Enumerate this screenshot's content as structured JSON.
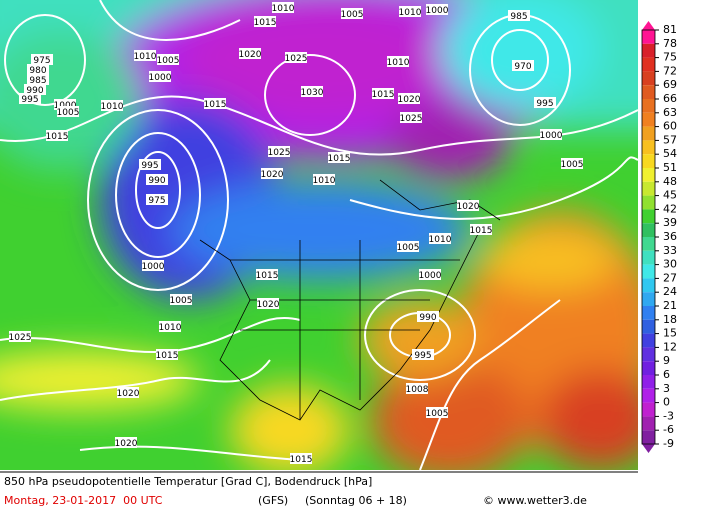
{
  "map": {
    "isobar_labels": [
      "1010",
      "1015",
      "1005",
      "1010",
      "1000",
      "985",
      "1020",
      "1025",
      "1010",
      "1005",
      "1000",
      "975",
      "980",
      "985",
      "990",
      "995",
      "1000",
      "1005",
      "1010",
      "1015",
      "1030",
      "1015",
      "1010",
      "1020",
      "970",
      "995",
      "1025",
      "1000",
      "1015",
      "1025",
      "1015",
      "995",
      "1020",
      "1010",
      "1005",
      "990",
      "975",
      "1020",
      "1015",
      "1010",
      "1005",
      "1000",
      "1015",
      "1000",
      "1005",
      "1020",
      "990",
      "1010",
      "1025",
      "1015",
      "995",
      "1020",
      "1008",
      "1005",
      "1020",
      "1015"
    ]
  },
  "colorbar": {
    "ticks": [
      81,
      78,
      75,
      72,
      69,
      66,
      63,
      60,
      57,
      54,
      51,
      48,
      45,
      42,
      39,
      36,
      33,
      30,
      27,
      24,
      21,
      18,
      15,
      12,
      9,
      6,
      3,
      0,
      -3,
      -6,
      -9
    ],
    "colors": [
      "#ff1493",
      "#d8202a",
      "#e03020",
      "#d84020",
      "#e05a20",
      "#e87020",
      "#f08020",
      "#f0a020",
      "#f8c020",
      "#f8d820",
      "#f0f030",
      "#c8e830",
      "#90e030",
      "#40d030",
      "#30c060",
      "#40d890",
      "#40e0c0",
      "#40e8e8",
      "#30c8f0",
      "#30a8f0",
      "#3080f0",
      "#3060e0",
      "#4040e0",
      "#6030e0",
      "#7020e0",
      "#9020e8",
      "#b020e8",
      "#c020d0",
      "#a020b0",
      "#8020a0"
    ]
  },
  "footer": {
    "line1": "850 hPa pseudopotentielle Temperatur [Grad C], Bodendruck [hPa]",
    "date": "Montag, 23-01-2017  00 UTC",
    "model": "(GFS)",
    "run": "(Sonntag 06 + 18)",
    "copyright": "© www.wetter3.de"
  }
}
